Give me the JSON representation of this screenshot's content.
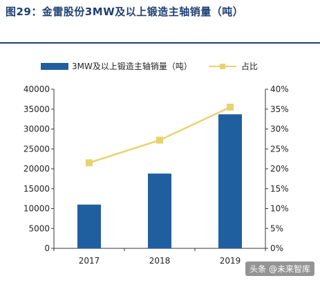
{
  "figure_title": "图29：金雷股份3MW及以上锻造主轴销量（吨）",
  "watermark": "头条 @未来智库",
  "colors": {
    "bar": "#1f5fa0",
    "line": "#e8d270",
    "axis": "#333333",
    "title": "#1f3f73"
  },
  "chart_data": {
    "type": "bar+line",
    "categories": [
      "2017",
      "2018",
      "2019"
    ],
    "series": [
      {
        "name": "3MW及以上锻造主轴销量（吨）",
        "type": "bar",
        "axis": "left",
        "values": [
          11000,
          18800,
          33700
        ]
      },
      {
        "name": "占比",
        "type": "line",
        "axis": "right",
        "values": [
          21.5,
          27.2,
          35.5
        ]
      }
    ],
    "y_left": {
      "min": 0,
      "max": 40000,
      "step": 5000,
      "ticks": [
        "0",
        "5000",
        "10000",
        "15000",
        "20000",
        "25000",
        "30000",
        "35000",
        "40000"
      ]
    },
    "y_right": {
      "min": 0,
      "max": 40,
      "step": 5,
      "ticks": [
        "0%",
        "5%",
        "10%",
        "15%",
        "20%",
        "25%",
        "30%",
        "35%",
        "40%"
      ]
    },
    "legend_position": "top",
    "grid": false
  }
}
